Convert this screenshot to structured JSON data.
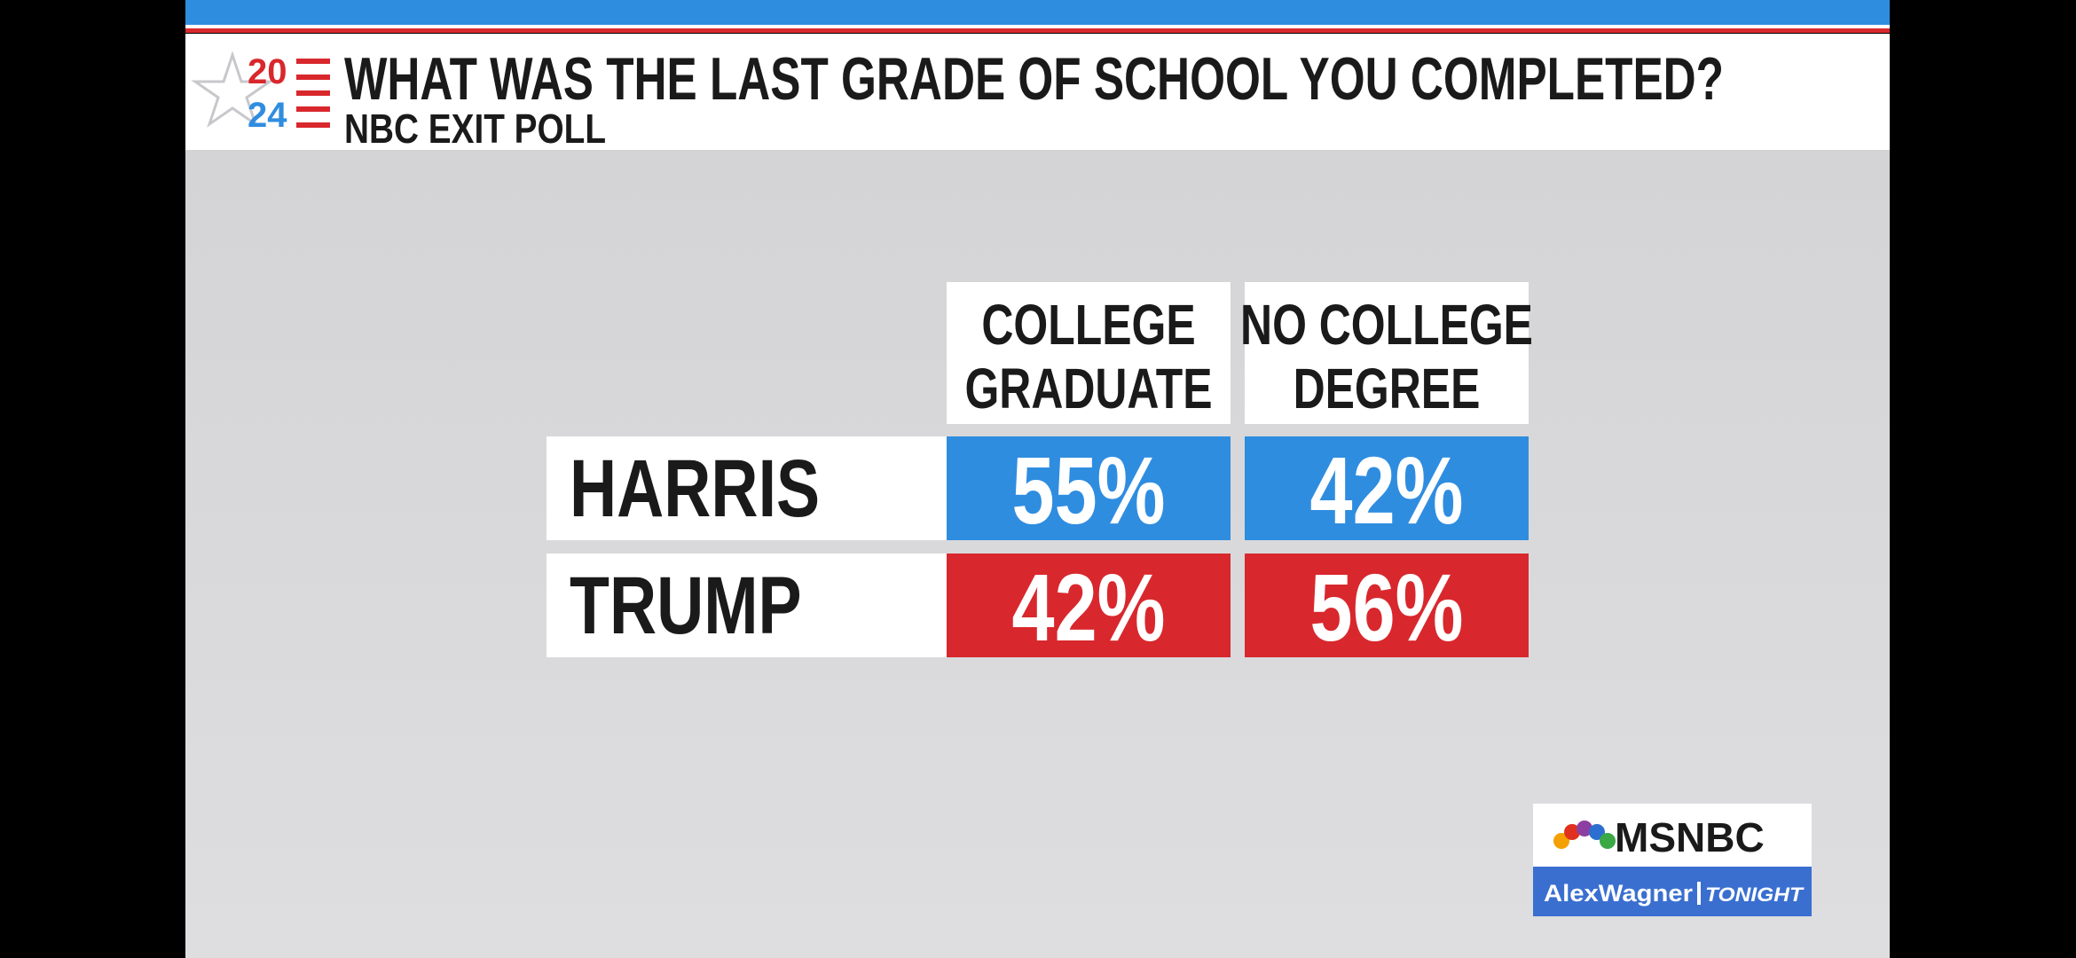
{
  "header": {
    "logo_top": "20",
    "logo_bottom": "24",
    "title": "WHAT WAS THE LAST GRADE OF SCHOOL YOU COMPLETED?",
    "subtitle": "NBC EXIT POLL"
  },
  "table": {
    "columns": [
      [
        "COLLEGE",
        "GRADUATE"
      ],
      [
        "NO COLLEGE",
        "DEGREE"
      ]
    ],
    "rows": [
      {
        "label": "HARRIS",
        "color": "#2f8de0",
        "values": [
          "55%",
          "42%"
        ]
      },
      {
        "label": "TRUMP",
        "color": "#d8282d",
        "values": [
          "42%",
          "56%"
        ]
      }
    ]
  },
  "branding": {
    "network": "MSNBC",
    "show_name": "AlexWagner",
    "show_suffix": "TONIGHT"
  }
}
